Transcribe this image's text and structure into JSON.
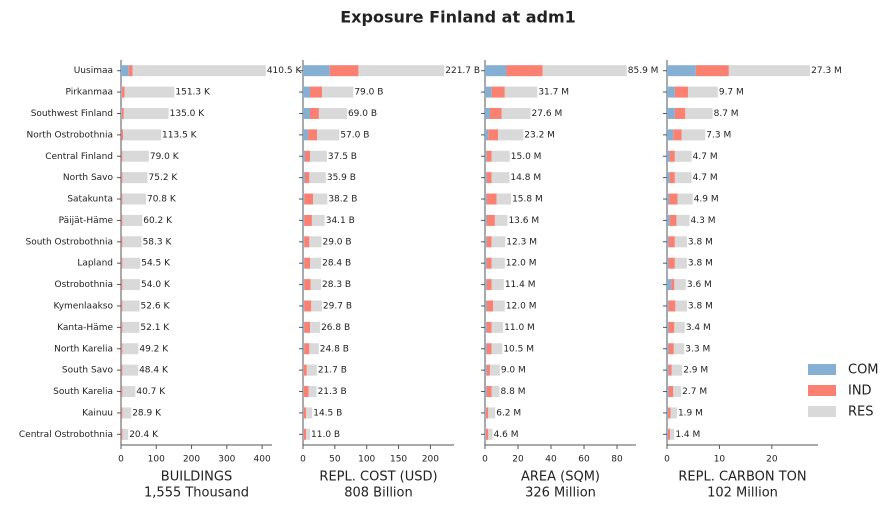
{
  "title": "Exposure Finland at adm1",
  "chart_data": [
    {
      "type": "barh",
      "xlabel": "BUILDINGS",
      "subtitle": "1,555 Thousand",
      "categories": [
        "Uusimaa",
        "Pirkanmaa",
        "Southwest Finland",
        "North Ostrobothnia",
        "Central Finland",
        "North Savo",
        "Satakunta",
        "Päijät-Häme",
        "South Ostrobothnia",
        "Lapland",
        "Ostrobothnia",
        "Kymenlaakso",
        "Kanta-Häme",
        "North Karelia",
        "South Savo",
        "South Karelia",
        "Kainuu",
        "Central Ostrobothnia"
      ],
      "series": [
        {
          "name": "COM",
          "color": "#86b0d3",
          "values": [
            22,
            2,
            2,
            1,
            1,
            1,
            1,
            1,
            1,
            1,
            1,
            1,
            1,
            1,
            1,
            1,
            1,
            1
          ]
        },
        {
          "name": "IND",
          "color": "#fa8072",
          "values": [
            11,
            8,
            6,
            5,
            3,
            3,
            3,
            3,
            3,
            3,
            3,
            3,
            3,
            3,
            3,
            3,
            3,
            3
          ]
        },
        {
          "name": "RES",
          "color": "#d9d9d9",
          "values": [
            377.5,
            141.3,
            127.0,
            107.5,
            75.0,
            71.2,
            66.8,
            56.2,
            54.3,
            50.5,
            50.0,
            48.6,
            48.1,
            45.2,
            44.4,
            36.7,
            24.9,
            16.4
          ]
        }
      ],
      "totals": [
        410.5,
        151.3,
        135.0,
        113.5,
        79.0,
        75.2,
        70.8,
        60.2,
        58.3,
        54.5,
        54.0,
        52.6,
        52.1,
        49.2,
        48.4,
        40.7,
        28.9,
        20.4
      ],
      "total_labels": [
        "410.5 K",
        "151.3 K",
        "135.0 K",
        "113.5 K",
        "79.0 K",
        "75.2 K",
        "70.8 K",
        "60.2 K",
        "58.3 K",
        "54.5 K",
        "54.0 K",
        "52.6 K",
        "52.1 K",
        "49.2 K",
        "48.4 K",
        "40.7 K",
        "28.9 K",
        "20.4 K"
      ],
      "xlim": [
        0,
        428
      ],
      "xticks": [
        0,
        100,
        200,
        300,
        400
      ]
    },
    {
      "type": "barh",
      "xlabel": "REPL. COST (USD)",
      "subtitle": "808 Billion",
      "series": [
        {
          "values": [
            42,
            11,
            11,
            8,
            3,
            3,
            2,
            2,
            2,
            2,
            2,
            2,
            2,
            2,
            1,
            1,
            1,
            1
          ]
        },
        {
          "values": [
            45,
            19,
            14,
            14,
            8,
            7,
            14,
            12,
            8,
            9,
            10,
            11,
            9,
            8,
            5,
            8,
            4,
            4
          ]
        },
        {
          "values": [
            134.7,
            49.0,
            44.0,
            35.0,
            26.5,
            25.9,
            22.2,
            20.1,
            19.0,
            17.4,
            16.3,
            16.7,
            15.8,
            14.8,
            15.7,
            12.3,
            9.5,
            6.0
          ]
        }
      ],
      "totals": [
        221.7,
        79.0,
        69.0,
        57.0,
        37.5,
        35.9,
        38.2,
        34.1,
        29.0,
        28.4,
        28.3,
        29.7,
        26.8,
        24.8,
        21.7,
        21.3,
        14.5,
        11.0
      ],
      "total_labels": [
        "221.7 B",
        "79.0 B",
        "69.0 B",
        "57.0 B",
        "37.5 B",
        "35.9 B",
        "38.2 B",
        "34.1 B",
        "29.0 B",
        "28.4 B",
        "28.3 B",
        "29.7 B",
        "26.8 B",
        "24.8 B",
        "21.7 B",
        "21.3 B",
        "14.5 B",
        "11.0 B"
      ],
      "xlim": [
        0,
        237
      ],
      "xticks": [
        0,
        50,
        100,
        150,
        200
      ]
    },
    {
      "type": "barh",
      "xlabel": "AREA (SQM)",
      "subtitle": "326 Million",
      "series": [
        {
          "values": [
            13,
            4,
            3,
            2,
            1,
            1,
            1,
            1,
            1,
            1,
            1,
            1,
            1,
            1,
            1,
            1,
            0.5,
            0.5
          ]
        },
        {
          "values": [
            22,
            8,
            7,
            6,
            3,
            3,
            6,
            5,
            3,
            3,
            3,
            4,
            3,
            3,
            2,
            3,
            1.5,
            1.5
          ]
        },
        {
          "values": [
            50.9,
            19.7,
            17.6,
            15.2,
            11.0,
            10.8,
            8.8,
            7.6,
            8.3,
            8.0,
            7.4,
            7.0,
            7.0,
            6.5,
            6.0,
            4.8,
            4.2,
            2.6
          ]
        }
      ],
      "totals": [
        85.9,
        31.7,
        27.6,
        23.2,
        15.0,
        14.8,
        15.8,
        13.6,
        12.3,
        12.0,
        11.4,
        12.0,
        11.0,
        10.5,
        9.0,
        8.8,
        6.2,
        4.6
      ],
      "total_labels": [
        "85.9 M",
        "31.7 M",
        "27.6 M",
        "23.2 M",
        "15.0 M",
        "14.8 M",
        "15.8 M",
        "13.6 M",
        "12.3 M",
        "12.0 M",
        "11.4 M",
        "12.0 M",
        "11.0 M",
        "10.5 M",
        "9.0 M",
        "8.8 M",
        "6.2 M",
        "4.6 M"
      ],
      "xlim": [
        0,
        91.5
      ],
      "xticks": [
        0,
        20,
        40,
        60,
        80
      ]
    },
    {
      "type": "barh",
      "xlabel": "REPL. CARBON TON",
      "subtitle": "102 Million",
      "series": [
        {
          "values": [
            5.5,
            1.5,
            1.5,
            1.2,
            0.5,
            0.5,
            0.4,
            0.5,
            0.3,
            0.3,
            0.8,
            0.3,
            0.3,
            0.3,
            0.3,
            0.3,
            0.2,
            0.2
          ]
        },
        {
          "values": [
            6.3,
            2.5,
            2,
            1.6,
            1,
            1,
            1.6,
            1.3,
            1.2,
            1.2,
            0.6,
            1.3,
            1.1,
            1,
            0.6,
            0.9,
            0.5,
            0.4
          ]
        },
        {
          "values": [
            15.5,
            5.7,
            5.2,
            4.5,
            3.2,
            3.2,
            2.9,
            2.5,
            2.3,
            2.3,
            2.2,
            2.2,
            2.0,
            2.0,
            2.0,
            1.5,
            1.2,
            0.8
          ]
        }
      ],
      "totals": [
        27.3,
        9.7,
        8.7,
        7.3,
        4.7,
        4.7,
        4.9,
        4.3,
        3.8,
        3.8,
        3.6,
        3.8,
        3.4,
        3.3,
        2.9,
        2.7,
        1.9,
        1.4
      ],
      "total_labels": [
        "27.3 M",
        "9.7 M",
        "8.7 M",
        "7.3 M",
        "4.7 M",
        "4.7 M",
        "4.9 M",
        "4.3 M",
        "3.8 M",
        "3.8 M",
        "3.6 M",
        "3.8 M",
        "3.4 M",
        "3.3 M",
        "2.9 M",
        "2.7 M",
        "1.9 M",
        "1.4 M"
      ],
      "xlim": [
        0,
        28.8
      ],
      "xticks": [
        0,
        10,
        20
      ]
    }
  ]
}
